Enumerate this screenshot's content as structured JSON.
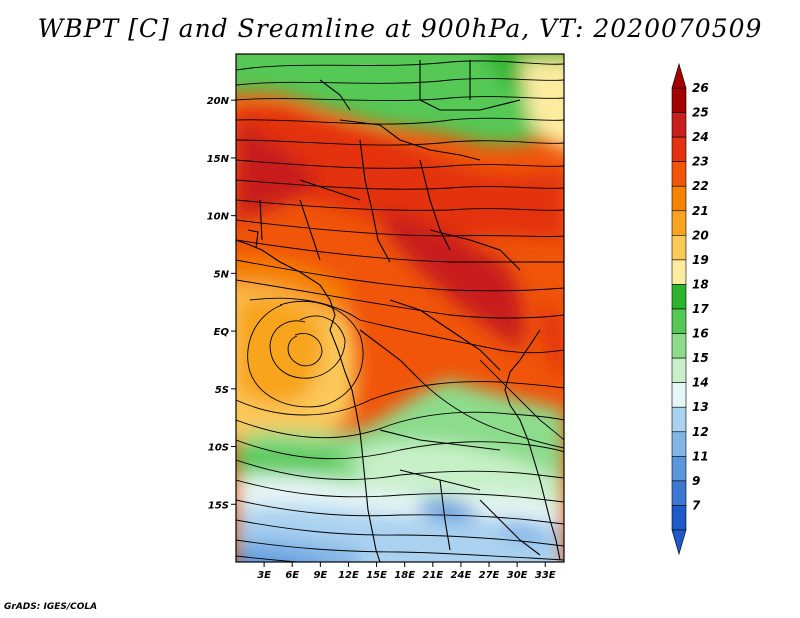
{
  "title": "WBPT [C] and Sreamline at 900hPa, VT: 2020070509",
  "credit": "GrADS: IGES/COLA",
  "map": {
    "lon_range": [
      0,
      35
    ],
    "lat_range": [
      -20,
      24
    ],
    "lon_ticks": [
      "3E",
      "6E",
      "9E",
      "12E",
      "15E",
      "18E",
      "21E",
      "24E",
      "27E",
      "30E",
      "33E"
    ],
    "lon_tick_values": [
      3,
      6,
      9,
      12,
      15,
      18,
      21,
      24,
      27,
      30,
      33
    ],
    "lat_ticks": [
      "20N",
      "15N",
      "10N",
      "5N",
      "EQ",
      "5S",
      "10S",
      "15S"
    ],
    "lat_tick_values": [
      20,
      15,
      10,
      5,
      0,
      -5,
      -10,
      -15
    ]
  },
  "colorbar": {
    "labels": [
      "26",
      "25",
      "24",
      "23",
      "22",
      "21",
      "20",
      "19",
      "18",
      "17",
      "16",
      "15",
      "14",
      "13",
      "12",
      "11",
      "9",
      "7"
    ],
    "colors": [
      "#a50000",
      "#c81e1e",
      "#e3320f",
      "#f0550a",
      "#f58200",
      "#f8a41e",
      "#fbc85a",
      "#fdeca0",
      "#2db42d",
      "#55c855",
      "#8cdc8c",
      "#c8f0c8",
      "#e6f5f5",
      "#aad2f0",
      "#82b4e6",
      "#5a96dc",
      "#3c78d2",
      "#1e5ac8"
    ]
  }
}
